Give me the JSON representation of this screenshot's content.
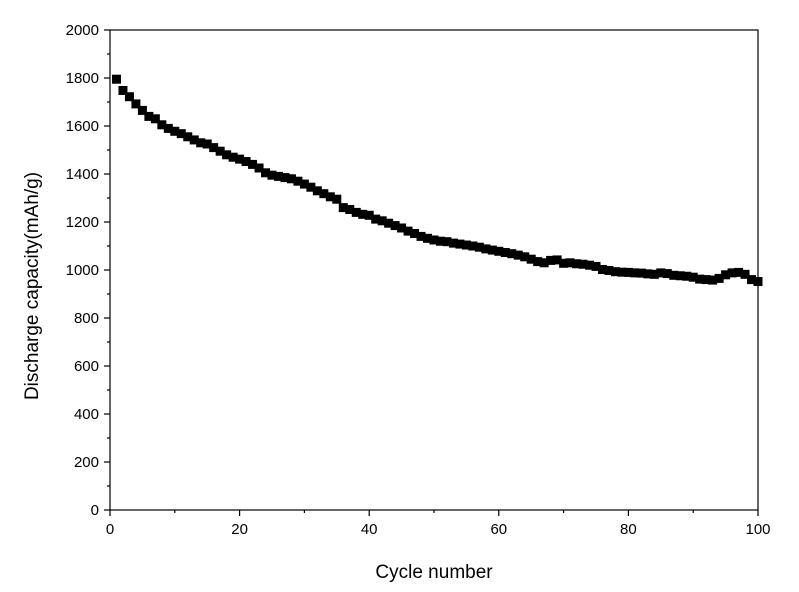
{
  "chart_data": {
    "type": "scatter",
    "title": "",
    "xlabel": "Cycle number",
    "ylabel": "Discharge capacity(mAh/g)",
    "xlim": [
      0,
      100
    ],
    "ylim": [
      0,
      2000
    ],
    "xticks": [
      0,
      20,
      40,
      60,
      80,
      100
    ],
    "yticks": [
      0,
      200,
      400,
      600,
      800,
      1000,
      1200,
      1400,
      1600,
      1800,
      2000
    ],
    "xtick_labels": [
      "0",
      "20",
      "40",
      "60",
      "80",
      "100"
    ],
    "ytick_labels": [
      "0",
      "200",
      "400",
      "600",
      "800",
      "1000",
      "1200",
      "1400",
      "1600",
      "1800",
      "2000"
    ],
    "grid": false,
    "marker": "square",
    "marker_color": "#000000",
    "series": [
      {
        "x": [
          1,
          2,
          3,
          4,
          5,
          6,
          7,
          8,
          9,
          10,
          11,
          12,
          13,
          14,
          15,
          16,
          17,
          18,
          19,
          20,
          21,
          22,
          23,
          24,
          25,
          26,
          27,
          28,
          29,
          30,
          31,
          32,
          33,
          34,
          35,
          36,
          37,
          38,
          39,
          40,
          41,
          42,
          43,
          44,
          45,
          46,
          47,
          48,
          49,
          50,
          51,
          52,
          53,
          54,
          55,
          56,
          57,
          58,
          59,
          60,
          61,
          62,
          63,
          64,
          65,
          66,
          67,
          68,
          69,
          70,
          71,
          72,
          73,
          74,
          75,
          76,
          77,
          78,
          79,
          80,
          81,
          82,
          83,
          84,
          85,
          86,
          87,
          88,
          89,
          90,
          91,
          92,
          93,
          94,
          95,
          96,
          97,
          98,
          99,
          100
        ],
        "y": [
          1795,
          1748,
          1722,
          1692,
          1665,
          1640,
          1630,
          1605,
          1590,
          1578,
          1568,
          1555,
          1542,
          1530,
          1525,
          1510,
          1495,
          1480,
          1470,
          1462,
          1452,
          1440,
          1425,
          1405,
          1395,
          1390,
          1385,
          1380,
          1370,
          1358,
          1345,
          1330,
          1318,
          1305,
          1295,
          1260,
          1252,
          1240,
          1232,
          1228,
          1212,
          1205,
          1195,
          1185,
          1175,
          1162,
          1152,
          1140,
          1132,
          1125,
          1120,
          1118,
          1112,
          1108,
          1104,
          1100,
          1095,
          1088,
          1083,
          1078,
          1073,
          1068,
          1062,
          1055,
          1045,
          1035,
          1030,
          1040,
          1042,
          1028,
          1030,
          1026,
          1024,
          1020,
          1015,
          1002,
          998,
          993,
          991,
          990,
          988,
          987,
          984,
          982,
          988,
          985,
          978,
          976,
          974,
          970,
          962,
          960,
          958,
          965,
          980,
          988,
          990,
          982,
          960,
          952
        ]
      }
    ]
  }
}
